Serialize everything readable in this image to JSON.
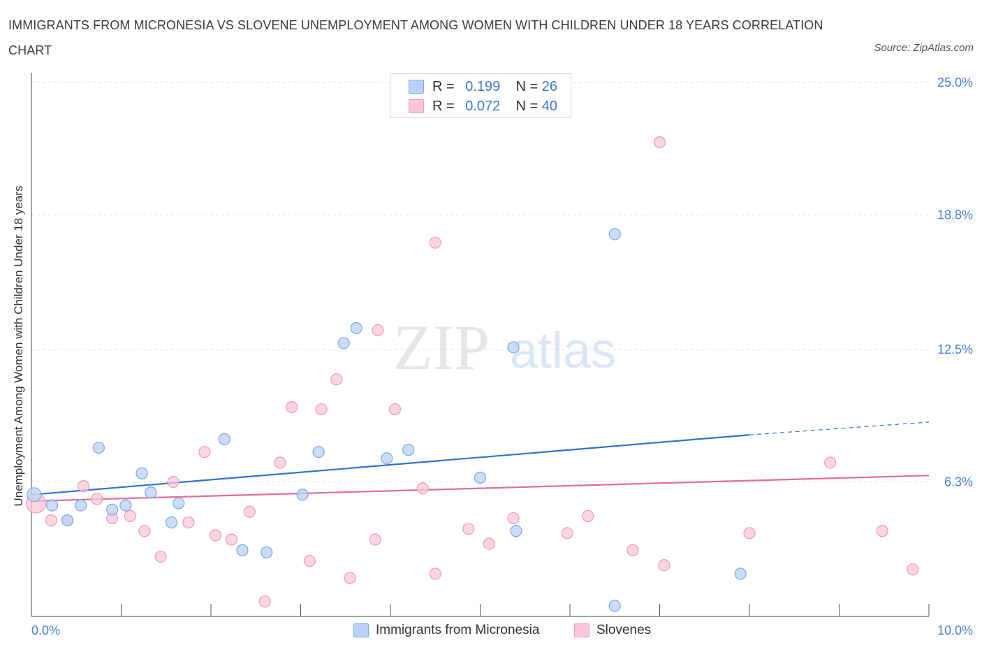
{
  "title": "IMMIGRANTS FROM MICRONESIA VS SLOVENE UNEMPLOYMENT AMONG WOMEN WITH CHILDREN UNDER 18 YEARS CORRELATION CHART",
  "source": "Source: ZipAtlas.com",
  "watermark": {
    "zip": "ZIP",
    "atlas": "atlas"
  },
  "colors": {
    "blue_fill": "#b9d2f5",
    "blue_stroke": "#7aa7e3",
    "blue_line": "#2f74d0",
    "pink_fill": "#f8c8d6",
    "pink_stroke": "#ee9bb5",
    "pink_line": "#e36e98",
    "tick_text": "#4a7fd0",
    "grid": "#dddddd"
  },
  "legend_top": [
    {
      "r_label": "R =",
      "r_value": "0.199",
      "n_label": "N =",
      "n_value": "26",
      "color": "#b9d2f5",
      "border": "#7aa7e3"
    },
    {
      "r_label": "R =",
      "r_value": "0.072",
      "n_label": "N =",
      "n_value": "40",
      "color": "#f8c8d6",
      "border": "#ee9bb5"
    }
  ],
  "legend_bottom": [
    {
      "label": "Immigrants from Micronesia",
      "color": "#b9d2f5",
      "border": "#7aa7e3"
    },
    {
      "label": "Slovenes",
      "color": "#f8c8d6",
      "border": "#ee9bb5"
    }
  ],
  "chart_data": {
    "type": "scatter",
    "title": "IMMIGRANTS FROM MICRONESIA VS SLOVENE UNEMPLOYMENT AMONG WOMEN WITH CHILDREN UNDER 18 YEARS CORRELATION CHART",
    "xlabel": "",
    "ylabel": "Unemployment Among Women with Children Under 18 years",
    "xlim": [
      0,
      10
    ],
    "ylim": [
      0,
      25
    ],
    "x_tick_labels": [
      "0.0%",
      "10.0%"
    ],
    "y_ticks": [
      6.3,
      12.5,
      18.8,
      25.0
    ],
    "y_tick_labels": [
      "6.3%",
      "12.5%",
      "18.8%",
      "25.0%"
    ],
    "grid": "horizontal dashed",
    "legend_position": "top-center",
    "series": [
      {
        "name": "Immigrants from Micronesia",
        "r": 0.199,
        "n": 26,
        "trend": {
          "x0": 0,
          "y0": 5.7,
          "x1": 8.0,
          "y1": 8.5,
          "dashed_to_x": 10.0,
          "dashed_y": 9.1
        },
        "points": [
          [
            0.03,
            5.7
          ],
          [
            0.23,
            5.2
          ],
          [
            0.4,
            4.5
          ],
          [
            0.55,
            5.2
          ],
          [
            0.75,
            7.9
          ],
          [
            0.9,
            5.0
          ],
          [
            1.05,
            5.2
          ],
          [
            1.23,
            6.7
          ],
          [
            1.33,
            5.8
          ],
          [
            1.56,
            4.4
          ],
          [
            1.64,
            5.3
          ],
          [
            2.15,
            8.3
          ],
          [
            2.35,
            3.1
          ],
          [
            2.62,
            3.0
          ],
          [
            3.02,
            5.7
          ],
          [
            3.2,
            7.7
          ],
          [
            3.48,
            12.8
          ],
          [
            3.62,
            13.5
          ],
          [
            3.96,
            7.4
          ],
          [
            4.2,
            7.8
          ],
          [
            5.0,
            6.5
          ],
          [
            5.37,
            12.6
          ],
          [
            5.4,
            4.0
          ],
          [
            6.5,
            0.5
          ],
          [
            6.5,
            17.9
          ],
          [
            7.9,
            2.0
          ]
        ]
      },
      {
        "name": "Slovenes",
        "r": 0.072,
        "n": 40,
        "trend": {
          "x0": 0,
          "y0": 5.4,
          "x1": 10.0,
          "y1": 6.6
        },
        "points": [
          [
            0.05,
            5.3
          ],
          [
            0.22,
            4.5
          ],
          [
            0.4,
            4.5
          ],
          [
            0.58,
            6.1
          ],
          [
            0.73,
            5.5
          ],
          [
            0.9,
            4.6
          ],
          [
            1.1,
            4.7
          ],
          [
            1.26,
            4.0
          ],
          [
            1.44,
            2.8
          ],
          [
            1.58,
            6.3
          ],
          [
            1.75,
            4.4
          ],
          [
            1.93,
            7.7
          ],
          [
            2.05,
            3.8
          ],
          [
            2.23,
            3.6
          ],
          [
            2.43,
            4.9
          ],
          [
            2.6,
            0.7
          ],
          [
            2.77,
            7.2
          ],
          [
            2.9,
            9.8
          ],
          [
            3.1,
            2.6
          ],
          [
            3.23,
            9.7
          ],
          [
            3.4,
            11.1
          ],
          [
            3.55,
            1.8
          ],
          [
            3.83,
            3.6
          ],
          [
            3.86,
            13.4
          ],
          [
            4.05,
            9.7
          ],
          [
            4.36,
            6.0
          ],
          [
            4.5,
            17.5
          ],
          [
            4.5,
            2.0
          ],
          [
            4.87,
            4.1
          ],
          [
            5.1,
            3.4
          ],
          [
            5.37,
            4.6
          ],
          [
            5.97,
            3.9
          ],
          [
            6.2,
            4.7
          ],
          [
            6.7,
            3.1
          ],
          [
            7.0,
            22.2
          ],
          [
            7.05,
            2.4
          ],
          [
            8.0,
            3.9
          ],
          [
            8.9,
            7.2
          ],
          [
            9.48,
            4.0
          ],
          [
            9.82,
            2.2
          ]
        ]
      }
    ]
  }
}
